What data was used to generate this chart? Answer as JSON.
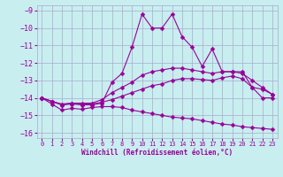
{
  "xlabel": "Windchill (Refroidissement éolien,°C)",
  "background_color": "#c8eef0",
  "grid_color": "#aaaacc",
  "line_color": "#990099",
  "xmin": -0.5,
  "xmax": 23.5,
  "ymin": -16.3,
  "ymax": -8.7,
  "yticks": [
    -16,
    -15,
    -14,
    -13,
    -12,
    -11,
    -10,
    -9
  ],
  "xticks": [
    0,
    1,
    2,
    3,
    4,
    5,
    6,
    7,
    8,
    9,
    10,
    11,
    12,
    13,
    14,
    15,
    16,
    17,
    18,
    19,
    20,
    21,
    22,
    23
  ],
  "lines": [
    {
      "x": [
        0,
        1,
        2,
        3,
        4,
        5,
        6,
        7,
        8,
        9,
        10,
        11,
        12,
        13,
        14,
        15,
        16,
        17,
        18,
        19,
        20,
        21,
        22,
        23
      ],
      "y": [
        -14.0,
        -14.2,
        -14.4,
        -14.35,
        -14.4,
        -14.4,
        -14.3,
        -13.1,
        -12.6,
        -11.1,
        -9.2,
        -10.0,
        -10.0,
        -9.2,
        -10.5,
        -11.1,
        -12.2,
        -11.2,
        -12.5,
        -12.5,
        -12.5,
        -13.4,
        -13.5,
        -13.8
      ]
    },
    {
      "x": [
        0,
        1,
        2,
        3,
        4,
        5,
        6,
        7,
        8,
        9,
        10,
        11,
        12,
        13,
        14,
        15,
        16,
        17,
        18,
        19,
        20,
        21,
        22,
        23
      ],
      "y": [
        -14.0,
        -14.2,
        -14.35,
        -14.3,
        -14.3,
        -14.3,
        -14.1,
        -13.7,
        -13.4,
        -13.1,
        -12.7,
        -12.5,
        -12.4,
        -12.3,
        -12.3,
        -12.4,
        -12.5,
        -12.6,
        -12.5,
        -12.5,
        -12.6,
        -13.0,
        -13.4,
        -13.8
      ]
    },
    {
      "x": [
        0,
        1,
        2,
        3,
        4,
        5,
        6,
        7,
        8,
        9,
        10,
        11,
        12,
        13,
        14,
        15,
        16,
        17,
        18,
        19,
        20,
        21,
        22,
        23
      ],
      "y": [
        -14.0,
        -14.2,
        -14.4,
        -14.3,
        -14.35,
        -14.35,
        -14.25,
        -14.1,
        -13.9,
        -13.7,
        -13.5,
        -13.3,
        -13.2,
        -13.0,
        -12.9,
        -12.9,
        -12.95,
        -13.0,
        -12.85,
        -12.75,
        -12.9,
        -13.4,
        -14.0,
        -14.0
      ]
    },
    {
      "x": [
        0,
        1,
        2,
        3,
        4,
        5,
        6,
        7,
        8,
        9,
        10,
        11,
        12,
        13,
        14,
        15,
        16,
        17,
        18,
        19,
        20,
        21,
        22,
        23
      ],
      "y": [
        -14.0,
        -14.35,
        -14.7,
        -14.6,
        -14.65,
        -14.55,
        -14.5,
        -14.5,
        -14.55,
        -14.7,
        -14.8,
        -14.9,
        -15.0,
        -15.1,
        -15.15,
        -15.2,
        -15.3,
        -15.4,
        -15.5,
        -15.55,
        -15.65,
        -15.7,
        -15.75,
        -15.8
      ]
    }
  ]
}
